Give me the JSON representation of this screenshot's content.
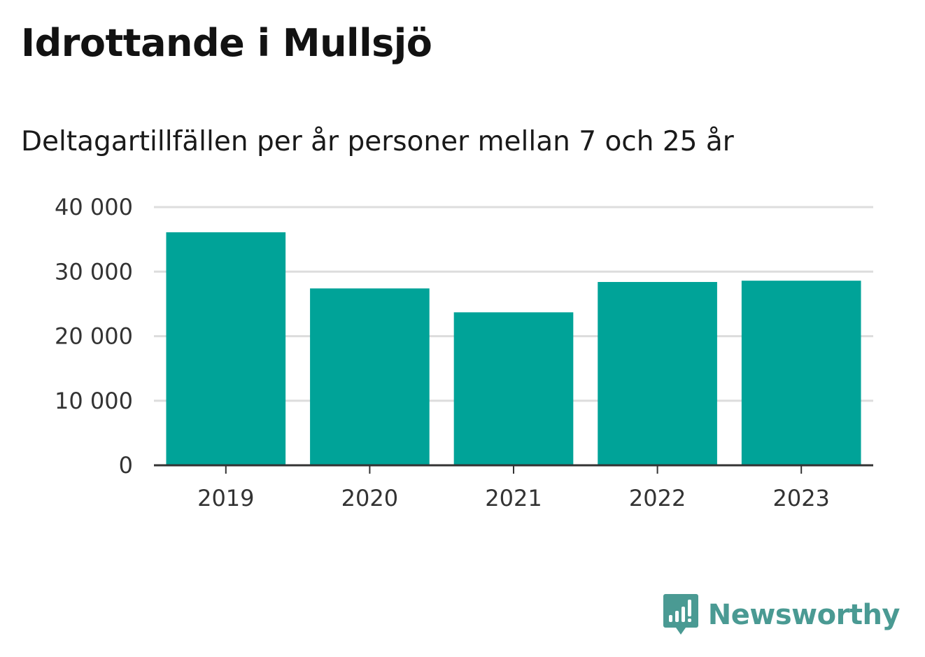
{
  "title": "Idrottande i Mullsjö",
  "subtitle": "Deltagartillfällen per år personer mellan 7 och 25 år",
  "brand": {
    "name": "Newsworthy",
    "logo_icon": "newsworthy-speech-bubble-bars-icon",
    "color": "#4a9a93"
  },
  "colors": {
    "bar": "#00a398",
    "grid": "#dddddd",
    "axis": "#333333"
  },
  "chart_data": {
    "type": "bar",
    "categories": [
      "2019",
      "2020",
      "2021",
      "2022",
      "2023"
    ],
    "values": [
      36100,
      27400,
      23700,
      28400,
      28600
    ],
    "ylim": [
      0,
      40000
    ],
    "yticks": [
      0,
      10000,
      20000,
      30000,
      40000
    ],
    "ytick_labels": [
      "0",
      "10 000",
      "20 000",
      "30 000",
      "40 000"
    ],
    "xlabel": "",
    "ylabel": "",
    "grid": true,
    "legend": "none"
  }
}
